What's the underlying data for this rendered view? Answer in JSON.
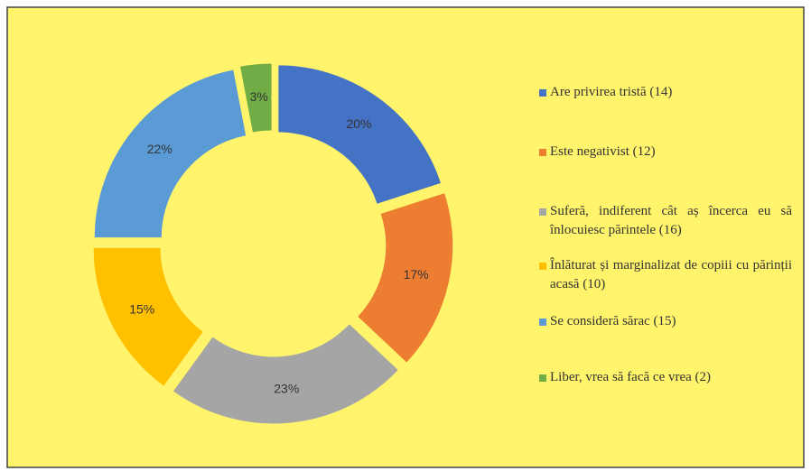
{
  "chart_data": {
    "type": "doughnut",
    "categories": [
      "Are privirea tristă (14)",
      "Este negativist (12)",
      "Suferă, indiferent cât aș încerca eu să înlocuiesc părintele (16)",
      "Înlăturat și marginalizat de copiii cu părinții acasă (10)",
      "Se consideră sărac (15)",
      "Liber, vrea să facă ce vrea (2)"
    ],
    "values": [
      20,
      17,
      23,
      15,
      22,
      3
    ],
    "value_labels": [
      "20%",
      "17%",
      "23%",
      "15%",
      "22%",
      "3%"
    ],
    "colors": [
      "#4472c4",
      "#ed7d31",
      "#a5a5a5",
      "#ffc000",
      "#5b9bd5",
      "#70ad47"
    ],
    "legend": "right"
  }
}
